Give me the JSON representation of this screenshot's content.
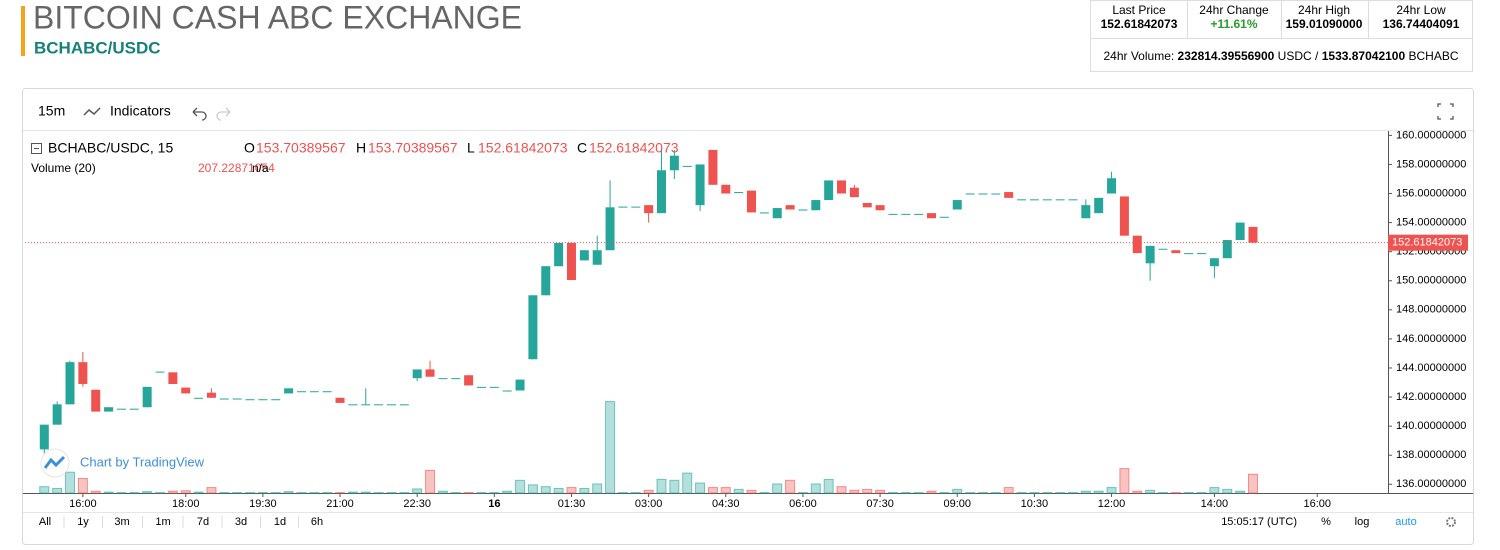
{
  "header": {
    "title": "BITCOIN CASH ABC EXCHANGE",
    "subtitle": "BCHABC/USDC",
    "stats": [
      {
        "label": "Last Price",
        "value": "152.61842073"
      },
      {
        "label": "24hr Change",
        "value": "+11.61%"
      },
      {
        "label": "24hr High",
        "value": "159.01090000"
      },
      {
        "label": "24hr Low",
        "value": "136.74404091"
      }
    ],
    "volume": {
      "label": "24hr Volume:",
      "quote": "232814.39556900",
      "quote_unit": "USDC",
      "separator": "/",
      "base": "1533.87042100",
      "base_unit": "BCHABC"
    }
  },
  "toolbar": {
    "interval": "15m",
    "indicators": "Indicators"
  },
  "footer": {
    "ranges": [
      "All",
      "1y",
      "3m",
      "1m",
      "7d",
      "3d",
      "1d",
      "6h"
    ],
    "clock": "15:05:17 (UTC)",
    "options": [
      "%",
      "log",
      "auto"
    ]
  },
  "watermark": "Chart by TradingView",
  "chart_data": {
    "type": "candlestick",
    "symbol": "BCHABC/USDC, 15",
    "ohlc_labels": [
      "O",
      "H",
      "L",
      "C"
    ],
    "volume_name": "Volume (20)",
    "volume_extra": "n/a",
    "up_color": "#26a69a",
    "down_color": "#ef5350",
    "xlim": [
      -1.5,
      104.5
    ],
    "ylim": [
      135.4,
      160.3
    ],
    "volume_ylim": [
      0,
      4000
    ],
    "xticks": [
      {
        "value": 3,
        "label": "16:00"
      },
      {
        "value": 11,
        "label": "18:00"
      },
      {
        "value": 17,
        "label": "19:30"
      },
      {
        "value": 23,
        "label": "21:00"
      },
      {
        "value": 29,
        "label": "22:30"
      },
      {
        "value": 35,
        "label": "16"
      },
      {
        "value": 41,
        "label": "01:30"
      },
      {
        "value": 47,
        "label": "03:00"
      },
      {
        "value": 53,
        "label": "04:30"
      },
      {
        "value": 59,
        "label": "06:00"
      },
      {
        "value": 65,
        "label": "07:30"
      },
      {
        "value": 71,
        "label": "09:00"
      },
      {
        "value": 77,
        "label": "10:30"
      },
      {
        "value": 83,
        "label": "12:00"
      },
      {
        "value": 91,
        "label": "14:00"
      },
      {
        "value": 99,
        "label": "16:00"
      }
    ],
    "yticks": [
      {
        "value": 136,
        "label": "136.00000000"
      },
      {
        "value": 138,
        "label": "138.00000000"
      },
      {
        "value": 140,
        "label": "140.00000000"
      },
      {
        "value": 142,
        "label": "142.00000000"
      },
      {
        "value": 144,
        "label": "144.00000000"
      },
      {
        "value": 146,
        "label": "146.00000000"
      },
      {
        "value": 148,
        "label": "148.00000000"
      },
      {
        "value": 150,
        "label": "150.00000000"
      },
      {
        "value": 152,
        "label": "152.00000000"
      },
      {
        "value": 154,
        "label": "154.00000000"
      },
      {
        "value": 156,
        "label": "156.00000000"
      },
      {
        "value": 158,
        "label": "158.00000000"
      },
      {
        "value": 160,
        "label": "160.00000000"
      }
    ],
    "open": [
      138.4,
      140.1,
      141.5,
      144.4,
      142.5,
      141.0,
      141.2,
      141.2,
      141.3,
      143.75,
      143.7,
      142.65,
      141.95,
      142.3,
      141.9,
      141.9,
      141.85,
      141.85,
      141.85,
      142.25,
      142.4,
      142.4,
      142.4,
      141.95,
      141.5,
      141.5,
      141.5,
      141.5,
      141.5,
      143.3,
      143.9,
      143.3,
      143.3,
      143.5,
      142.7,
      142.7,
      142.45,
      142.45,
      144.6,
      149.0,
      151.0,
      152.6,
      151.4,
      151.1,
      152.1,
      155.1,
      155.1,
      155.2,
      154.65,
      157.6,
      157.9,
      155.2,
      159.0,
      156.6,
      156.1,
      156.2,
      154.7,
      154.3,
      155.2,
      154.9,
      154.85,
      155.55,
      156.9,
      156.4,
      155.35,
      155.2,
      154.6,
      154.6,
      154.6,
      154.65,
      154.4,
      154.9,
      156.0,
      156.0,
      156.0,
      156.1,
      155.6,
      155.6,
      155.6,
      155.6,
      155.6,
      154.3,
      154.65,
      156.0,
      155.8,
      153.1,
      151.2,
      152.2,
      152.1,
      151.9,
      151.9,
      151.0,
      151.55,
      152.8,
      153.70389567
    ],
    "high": [
      140.1,
      141.7,
      144.5,
      145.1,
      142.5,
      141.3,
      141.2,
      141.2,
      142.7,
      143.75,
      143.7,
      142.65,
      141.95,
      142.6,
      141.9,
      141.9,
      141.85,
      141.85,
      141.85,
      142.6,
      142.4,
      142.4,
      142.4,
      141.95,
      141.5,
      142.6,
      141.5,
      141.5,
      141.5,
      143.9,
      144.5,
      143.3,
      143.3,
      143.5,
      142.7,
      142.7,
      142.45,
      143.2,
      149.0,
      151.0,
      152.6,
      152.6,
      152.1,
      153.1,
      156.9,
      155.1,
      155.1,
      155.2,
      158.97,
      159.0,
      157.9,
      158.0,
      159.0,
      156.6,
      156.1,
      156.2,
      154.7,
      155.0,
      155.2,
      154.9,
      155.55,
      156.9,
      156.9,
      156.6,
      155.35,
      155.2,
      154.6,
      154.6,
      154.6,
      154.65,
      154.4,
      155.55,
      156.0,
      156.0,
      156.0,
      156.1,
      155.6,
      155.6,
      155.6,
      155.6,
      155.6,
      155.6,
      155.7,
      157.5,
      155.8,
      153.1,
      152.4,
      152.2,
      152.1,
      151.9,
      151.9,
      151.55,
      152.8,
      154.0,
      153.70389567
    ],
    "low": [
      137.0,
      140.1,
      141.5,
      142.7,
      141.0,
      141.0,
      141.2,
      141.2,
      141.3,
      143.75,
      142.9,
      142.25,
      141.95,
      141.95,
      141.9,
      141.9,
      141.85,
      141.85,
      141.85,
      142.25,
      142.4,
      142.4,
      142.4,
      141.6,
      141.5,
      141.5,
      141.5,
      141.5,
      141.5,
      143.1,
      143.4,
      143.3,
      143.3,
      142.8,
      142.7,
      142.7,
      142.45,
      142.45,
      144.6,
      149.0,
      151.0,
      150.05,
      151.4,
      151.1,
      152.1,
      155.1,
      155.1,
      154.0,
      154.65,
      157.0,
      157.9,
      154.8,
      156.6,
      156.0,
      156.1,
      154.7,
      154.7,
      154.3,
      154.9,
      154.9,
      154.85,
      155.55,
      156.0,
      155.75,
      155.05,
      154.85,
      154.6,
      154.6,
      154.6,
      154.3,
      154.4,
      154.9,
      156.0,
      156.0,
      156.0,
      155.7,
      155.6,
      155.6,
      155.6,
      155.6,
      155.6,
      154.3,
      154.65,
      156.0,
      153.1,
      151.9,
      150.0,
      152.2,
      151.9,
      151.9,
      151.9,
      150.2,
      151.55,
      152.8,
      152.61842073
    ],
    "close": [
      140.1,
      141.5,
      144.4,
      142.9,
      141.0,
      141.3,
      141.2,
      141.2,
      142.7,
      143.75,
      142.9,
      142.25,
      141.95,
      141.95,
      141.9,
      141.9,
      141.85,
      141.85,
      141.85,
      142.6,
      142.4,
      142.4,
      142.4,
      141.6,
      141.5,
      141.5,
      141.5,
      141.5,
      141.5,
      143.9,
      143.4,
      143.3,
      143.3,
      142.8,
      142.7,
      142.7,
      142.45,
      143.2,
      149.0,
      151.0,
      152.6,
      150.05,
      152.1,
      152.1,
      155.05,
      155.1,
      155.1,
      154.65,
      157.6,
      158.6,
      157.9,
      158.0,
      156.6,
      156.0,
      156.1,
      154.7,
      154.7,
      155.0,
      154.9,
      154.9,
      155.55,
      156.9,
      156.0,
      155.75,
      155.05,
      154.85,
      154.6,
      154.6,
      154.6,
      154.3,
      154.4,
      155.55,
      156.0,
      156.0,
      156.0,
      155.7,
      155.6,
      155.6,
      155.6,
      155.6,
      155.6,
      155.2,
      155.7,
      157.05,
      153.1,
      151.9,
      152.4,
      152.2,
      151.9,
      151.9,
      151.9,
      151.55,
      152.8,
      154.0,
      152.61842073
    ],
    "volume": [
      70,
      50,
      230,
      160,
      20,
      10,
      5,
      5,
      15,
      5,
      20,
      25,
      10,
      60,
      5,
      5,
      5,
      5,
      5,
      15,
      5,
      5,
      5,
      5,
      10,
      10,
      5,
      5,
      5,
      45,
      250,
      20,
      5,
      5,
      5,
      5,
      20,
      140,
      90,
      70,
      50,
      60,
      50,
      100,
      1010,
      5,
      5,
      30,
      150,
      140,
      220,
      110,
      60,
      60,
      40,
      30,
      5,
      100,
      140,
      5,
      100,
      150,
      70,
      30,
      40,
      30,
      5,
      5,
      5,
      20,
      5,
      40,
      5,
      5,
      5,
      60,
      5,
      5,
      5,
      5,
      5,
      20,
      20,
      60,
      270,
      20,
      30,
      5,
      5,
      5,
      5,
      60,
      40,
      20,
      207.22871054
    ]
  }
}
